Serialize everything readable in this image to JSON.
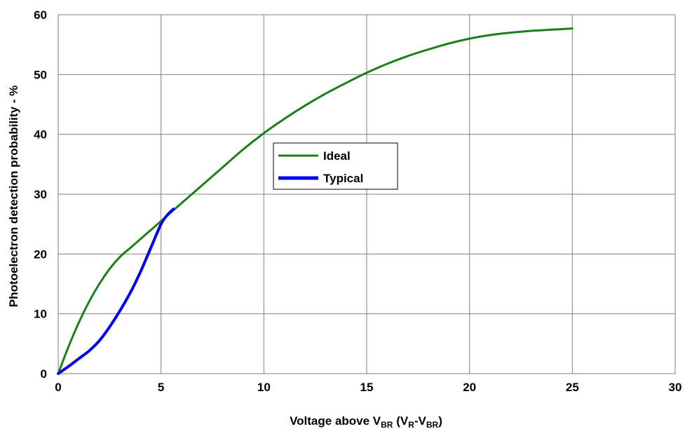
{
  "chart_data": {
    "type": "line",
    "xlabel": {
      "parts": [
        {
          "text": "Voltage above V",
          "sub": false
        },
        {
          "text": "BR",
          "sub": true
        },
        {
          "text": " (V",
          "sub": false
        },
        {
          "text": "R",
          "sub": true
        },
        {
          "text": "-V",
          "sub": false
        },
        {
          "text": "BR",
          "sub": true
        },
        {
          "text": ")",
          "sub": false
        }
      ]
    },
    "ylabel": "Photoelectron detection probability - %",
    "xlim": [
      0,
      30
    ],
    "ylim": [
      0,
      60
    ],
    "xticks": [
      "0",
      "5",
      "10",
      "15",
      "20",
      "25",
      "30"
    ],
    "yticks": [
      "0",
      "10",
      "20",
      "30",
      "40",
      "50",
      "60"
    ],
    "grid": true,
    "legend_position": "center",
    "series": [
      {
        "name": "Ideal",
        "color": "#1a7f1a",
        "x": [
          0,
          0.5,
          1,
          1.5,
          2,
          2.5,
          3,
          3.5,
          4,
          5,
          6,
          7,
          8,
          9,
          10,
          11,
          12,
          13,
          14,
          15,
          16,
          17,
          18,
          19,
          20,
          21,
          22,
          23,
          24,
          25
        ],
        "y": [
          0,
          4.5,
          8.5,
          12,
          15,
          17.5,
          19.5,
          21,
          22.5,
          25.5,
          28.5,
          31.5,
          34.5,
          37.5,
          40.2,
          42.6,
          44.8,
          46.8,
          48.6,
          50.3,
          51.8,
          53.1,
          54.2,
          55.2,
          56,
          56.6,
          57,
          57.3,
          57.5,
          57.7
        ]
      },
      {
        "name": "Typical",
        "color": "#0000ee",
        "x": [
          0,
          0.5,
          1,
          1.5,
          2,
          2.5,
          3,
          3.5,
          4,
          4.5,
          5,
          5.3,
          5.6
        ],
        "y": [
          0,
          1.2,
          2.5,
          3.8,
          5.5,
          7.8,
          10.5,
          13.5,
          17,
          21,
          25,
          26.5,
          27.5
        ]
      }
    ]
  }
}
